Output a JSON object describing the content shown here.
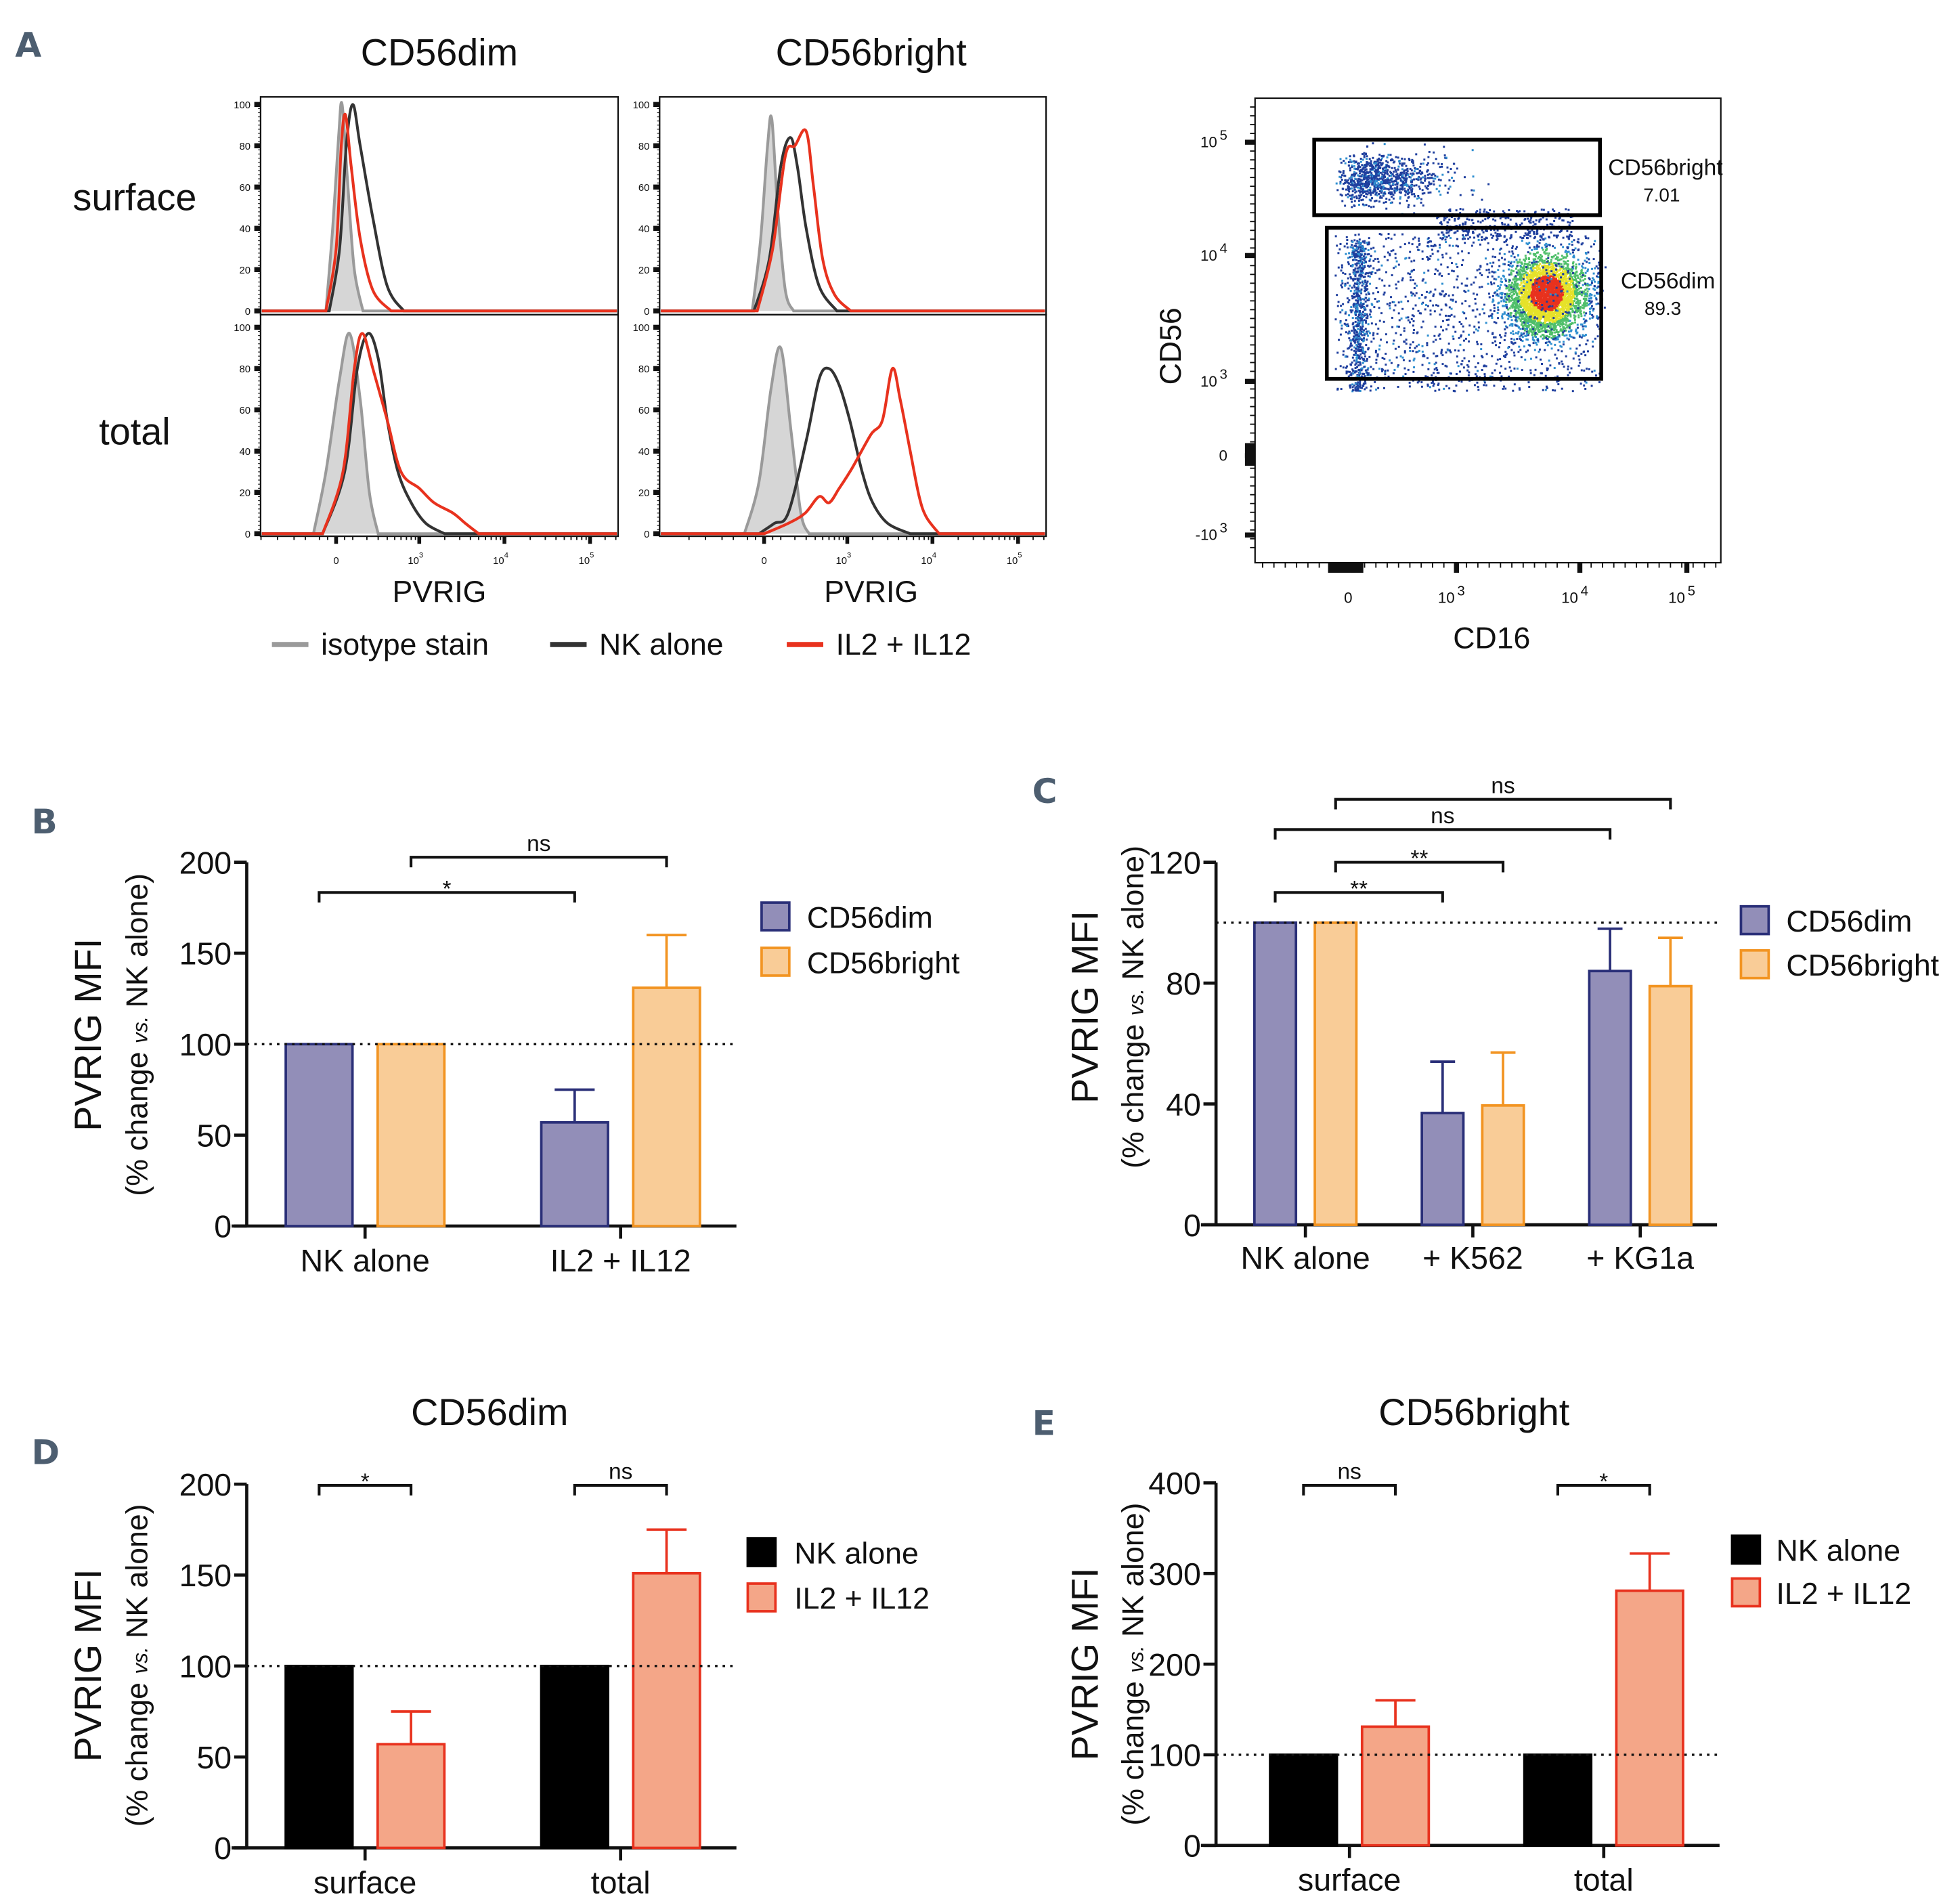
{
  "panel_labels": [
    "A",
    "B",
    "C",
    "D",
    "E"
  ],
  "panel_a": {
    "column_titles": [
      "CD56dim",
      "CD56bright"
    ],
    "row_labels": [
      "surface",
      "total"
    ],
    "x_label": "PVRIG",
    "y_ticks": [
      "0",
      "20",
      "40",
      "60",
      "80",
      "100"
    ],
    "x_ticks": [
      {
        "base": "0",
        "exp": ""
      },
      {
        "base": "10",
        "exp": "3"
      },
      {
        "base": "10",
        "exp": "4"
      },
      {
        "base": "10",
        "exp": "5"
      }
    ],
    "legend": [
      {
        "label": "isotype stain",
        "color": "#9a9a9a"
      },
      {
        "label": "NK alone",
        "color": "#333333"
      },
      {
        "label": "IL2 + IL12",
        "color": "#e8321e"
      }
    ],
    "flow_plot": {
      "x_label": "CD16",
      "y_label": "CD56",
      "x_ticks": [
        {
          "base": "0",
          "exp": ""
        },
        {
          "base": "10",
          "exp": "3"
        },
        {
          "base": "10",
          "exp": "4"
        },
        {
          "base": "10",
          "exp": "5"
        }
      ],
      "y_ticks": [
        {
          "base": "10",
          "exp": "5"
        },
        {
          "base": "10",
          "exp": "4"
        },
        {
          "base": "10",
          "exp": "3"
        },
        {
          "base": "0",
          "exp": ""
        },
        {
          "base": "-10",
          "exp": "3"
        }
      ],
      "gates": [
        {
          "name": "CD56bright",
          "percent": "7.01"
        },
        {
          "name": "CD56dim",
          "percent": "89.3"
        }
      ]
    }
  },
  "chart_data": [
    {
      "type": "line",
      "panel": "A",
      "subtitle": "CD56dim surface",
      "xlabel": "PVRIG",
      "ylim": [
        0,
        100
      ],
      "x_scale": "biexponential",
      "series": [
        {
          "name": "isotype stain",
          "points": [
            [
              -60,
              0
            ],
            [
              -20,
              40
            ],
            [
              15,
              85
            ],
            [
              35,
              100
            ],
            [
              70,
              60
            ],
            [
              110,
              20
            ],
            [
              170,
              0
            ]
          ]
        },
        {
          "name": "NK alone",
          "points": [
            [
              -40,
              0
            ],
            [
              20,
              30
            ],
            [
              60,
              80
            ],
            [
              100,
              100
            ],
            [
              150,
              80
            ],
            [
              250,
              45
            ],
            [
              400,
              12
            ],
            [
              650,
              0
            ]
          ]
        },
        {
          "name": "IL2 + IL12",
          "points": [
            [
              -60,
              0
            ],
            [
              0,
              30
            ],
            [
              30,
              80
            ],
            [
              55,
              95
            ],
            [
              90,
              70
            ],
            [
              150,
              35
            ],
            [
              250,
              10
            ],
            [
              450,
              0
            ]
          ]
        }
      ]
    },
    {
      "type": "line",
      "panel": "A",
      "subtitle": "CD56bright surface",
      "xlabel": "PVRIG",
      "ylim": [
        0,
        100
      ],
      "x_scale": "biexponential",
      "series": [
        {
          "name": "isotype stain",
          "points": [
            [
              -70,
              0
            ],
            [
              -20,
              35
            ],
            [
              20,
              80
            ],
            [
              45,
              93
            ],
            [
              80,
              50
            ],
            [
              130,
              10
            ],
            [
              190,
              0
            ]
          ]
        },
        {
          "name": "NK alone",
          "points": [
            [
              -60,
              0
            ],
            [
              30,
              25
            ],
            [
              100,
              70
            ],
            [
              165,
              84
            ],
            [
              220,
              70
            ],
            [
              300,
              40
            ],
            [
              450,
              12
            ],
            [
              750,
              0
            ]
          ]
        },
        {
          "name": "IL2 + IL12",
          "points": [
            [
              -40,
              0
            ],
            [
              50,
              30
            ],
            [
              130,
              75
            ],
            [
              200,
              80
            ],
            [
              300,
              87
            ],
            [
              380,
              60
            ],
            [
              500,
              25
            ],
            [
              700,
              8
            ],
            [
              1100,
              0
            ]
          ]
        }
      ]
    },
    {
      "type": "line",
      "panel": "A",
      "subtitle": "CD56dim total",
      "xlabel": "PVRIG",
      "ylim": [
        0,
        100
      ],
      "x_scale": "biexponential",
      "series": [
        {
          "name": "isotype stain",
          "points": [
            [
              -140,
              0
            ],
            [
              -60,
              30
            ],
            [
              20,
              75
            ],
            [
              80,
              97
            ],
            [
              150,
              65
            ],
            [
              220,
              20
            ],
            [
              300,
              0
            ]
          ]
        },
        {
          "name": "NK alone",
          "points": [
            [
              -80,
              0
            ],
            [
              50,
              30
            ],
            [
              130,
              80
            ],
            [
              210,
              97
            ],
            [
              300,
              85
            ],
            [
              400,
              55
            ],
            [
              550,
              30
            ],
            [
              800,
              15
            ],
            [
              1200,
              5
            ],
            [
              2000,
              0
            ]
          ]
        },
        {
          "name": "IL2 + IL12",
          "points": [
            [
              -80,
              0
            ],
            [
              40,
              30
            ],
            [
              110,
              80
            ],
            [
              165,
              97
            ],
            [
              250,
              80
            ],
            [
              400,
              55
            ],
            [
              600,
              30
            ],
            [
              1000,
              22
            ],
            [
              1500,
              15
            ],
            [
              2500,
              10
            ],
            [
              3500,
              5
            ],
            [
              5000,
              0
            ]
          ]
        }
      ]
    },
    {
      "type": "line",
      "panel": "A",
      "subtitle": "CD56bright total",
      "xlabel": "PVRIG",
      "ylim": [
        0,
        100
      ],
      "x_scale": "biexponential",
      "series": [
        {
          "name": "isotype stain",
          "points": [
            [
              -120,
              0
            ],
            [
              -30,
              25
            ],
            [
              40,
              70
            ],
            [
              100,
              90
            ],
            [
              170,
              50
            ],
            [
              250,
              10
            ],
            [
              330,
              0
            ]
          ]
        },
        {
          "name": "NK alone",
          "points": [
            [
              -30,
              0
            ],
            [
              60,
              5
            ],
            [
              150,
              10
            ],
            [
              300,
              45
            ],
            [
              450,
              75
            ],
            [
              600,
              80
            ],
            [
              800,
              72
            ],
            [
              1070,
              55
            ],
            [
              1500,
              30
            ],
            [
              2000,
              15
            ],
            [
              3000,
              5
            ],
            [
              5500,
              0
            ]
          ]
        },
        {
          "name": "IL2 + IL12",
          "points": [
            [
              0,
              0
            ],
            [
              150,
              5
            ],
            [
              290,
              10
            ],
            [
              450,
              18
            ],
            [
              600,
              15
            ],
            [
              800,
              22
            ],
            [
              1150,
              32
            ],
            [
              1900,
              48
            ],
            [
              2600,
              55
            ],
            [
              3400,
              80
            ],
            [
              4200,
              65
            ],
            [
              5500,
              40
            ],
            [
              7000,
              18
            ],
            [
              8500,
              8
            ],
            [
              12000,
              0
            ]
          ]
        }
      ]
    },
    {
      "type": "scatter",
      "panel": "A",
      "xlabel": "CD16",
      "ylabel": "CD56",
      "density_colors": [
        "#1f3f9e",
        "#2f8fd0",
        "#4fbf6a",
        "#e6e22a",
        "#e8321e"
      ]
    },
    {
      "type": "bar",
      "panel": "B",
      "title": "",
      "ylabel": "PVRIG MFI",
      "ylabel_sub": [
        "(% change ",
        "vs.",
        " NK alone)"
      ],
      "categories": [
        "NK alone",
        "IL2 + IL12"
      ],
      "ylim": [
        0,
        200
      ],
      "yticks": [
        "0",
        "50",
        "100",
        "150",
        "200"
      ],
      "reference_line": 100,
      "series": [
        {
          "name": "CD56dim",
          "values": [
            100,
            57
          ],
          "errors": [
            0,
            18
          ],
          "fill": "#928eb8",
          "stroke": "#2a2f78"
        },
        {
          "name": "CD56bright",
          "values": [
            100,
            131
          ],
          "errors": [
            0,
            29
          ],
          "fill": "#f9cc97",
          "stroke": "#f29422"
        }
      ],
      "significance": [
        {
          "label": "*",
          "from": [
            0,
            0
          ],
          "to": [
            1,
            0
          ]
        },
        {
          "label": "ns",
          "from": [
            0,
            1
          ],
          "to": [
            1,
            1
          ]
        }
      ]
    },
    {
      "type": "bar",
      "panel": "C",
      "title": "",
      "ylabel": "PVRIG MFI",
      "ylabel_sub": [
        "(% change ",
        "vs.",
        " NK alone)"
      ],
      "categories": [
        "NK alone",
        "+ K562",
        "+ KG1a"
      ],
      "ylim": [
        0,
        120
      ],
      "yticks": [
        "0",
        "40",
        "80",
        "120"
      ],
      "reference_line": 100,
      "series": [
        {
          "name": "CD56dim",
          "values": [
            100,
            37,
            84
          ],
          "errors": [
            0,
            17,
            14
          ],
          "fill": "#928eb8",
          "stroke": "#2a2f78"
        },
        {
          "name": "CD56bright",
          "values": [
            100,
            39.5,
            79
          ],
          "errors": [
            0,
            17.5,
            16
          ],
          "fill": "#f9cc97",
          "stroke": "#f29422"
        }
      ],
      "significance": [
        {
          "label": "**",
          "from": [
            0,
            0
          ],
          "to": [
            1,
            0
          ]
        },
        {
          "label": "**",
          "from": [
            0,
            1
          ],
          "to": [
            1,
            1
          ]
        },
        {
          "label": "ns",
          "from": [
            0,
            0
          ],
          "to": [
            2,
            0
          ]
        },
        {
          "label": "ns",
          "from": [
            0,
            1
          ],
          "to": [
            2,
            1
          ]
        }
      ]
    },
    {
      "type": "bar",
      "panel": "D",
      "title": "CD56dim",
      "ylabel": "PVRIG MFI",
      "ylabel_sub": [
        "(% change ",
        "vs.",
        " NK alone)"
      ],
      "categories": [
        "surface",
        "total"
      ],
      "ylim": [
        0,
        200
      ],
      "yticks": [
        "0",
        "50",
        "100",
        "150",
        "200"
      ],
      "reference_line": 100,
      "series": [
        {
          "name": "NK alone",
          "values": [
            100,
            100
          ],
          "errors": [
            0,
            0
          ],
          "fill": "#000000",
          "stroke": "#000000"
        },
        {
          "name": "IL2 + IL12",
          "values": [
            57,
            151
          ],
          "errors": [
            18,
            24
          ],
          "fill": "#f4a688",
          "stroke": "#e8321e"
        }
      ],
      "significance": [
        {
          "label": "*",
          "from": [
            0,
            0
          ],
          "to": [
            0,
            1
          ]
        },
        {
          "label": "ns",
          "from": [
            1,
            0
          ],
          "to": [
            1,
            1
          ]
        }
      ]
    },
    {
      "type": "bar",
      "panel": "E",
      "title": "CD56bright",
      "ylabel": "PVRIG MFI",
      "ylabel_sub": [
        "(% change ",
        "vs.",
        " NK alone)"
      ],
      "categories": [
        "surface",
        "total"
      ],
      "ylim": [
        0,
        400
      ],
      "yticks": [
        "0",
        "100",
        "200",
        "300",
        "400"
      ],
      "reference_line": 100,
      "series": [
        {
          "name": "NK alone",
          "values": [
            100,
            100
          ],
          "errors": [
            0,
            0
          ],
          "fill": "#000000",
          "stroke": "#000000"
        },
        {
          "name": "IL2 + IL12",
          "values": [
            131,
            281
          ],
          "errors": [
            29,
            41
          ],
          "fill": "#f4a688",
          "stroke": "#e8321e"
        }
      ],
      "significance": [
        {
          "label": "ns",
          "from": [
            0,
            0
          ],
          "to": [
            0,
            1
          ]
        },
        {
          "label": "*",
          "from": [
            1,
            0
          ],
          "to": [
            1,
            1
          ]
        }
      ]
    }
  ]
}
